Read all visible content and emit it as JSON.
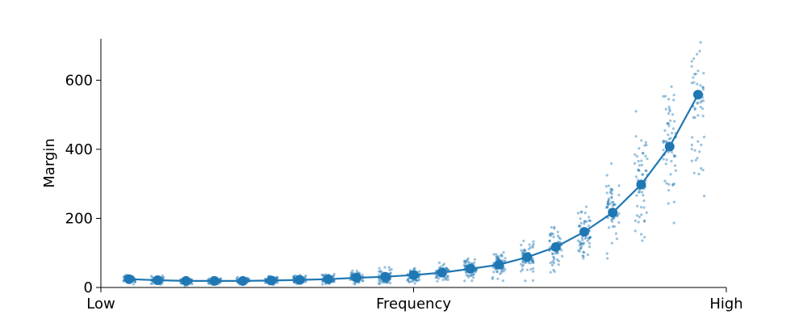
{
  "chart_data": {
    "type": "scatter",
    "ylabel": "Margin",
    "xlabel": "Frequency",
    "x_tick_labels": {
      "low": "Low",
      "high": "High"
    },
    "ylim": [
      0,
      720
    ],
    "y_ticks": [
      0,
      200,
      400,
      600
    ],
    "grid": false,
    "colors": {
      "series": "#1f77b4",
      "axis": "#000000"
    },
    "mean_series": {
      "x": [
        1,
        2,
        3,
        4,
        5,
        6,
        7,
        8,
        9,
        10,
        11,
        12,
        13,
        14,
        15,
        16,
        17,
        18,
        19,
        20,
        21,
        22
      ],
      "y": [
        24,
        21,
        19,
        19,
        19,
        20,
        22,
        24,
        28,
        31,
        36,
        43,
        54,
        66,
        88,
        117,
        161,
        217,
        298,
        408,
        558,
        null
      ]
    },
    "points_per_group": 60,
    "spread": [
      8,
      8,
      7,
      7,
      7,
      8,
      9,
      10,
      12,
      14,
      16,
      19,
      22,
      27,
      33,
      42,
      55,
      70,
      95,
      140,
      170
    ]
  }
}
